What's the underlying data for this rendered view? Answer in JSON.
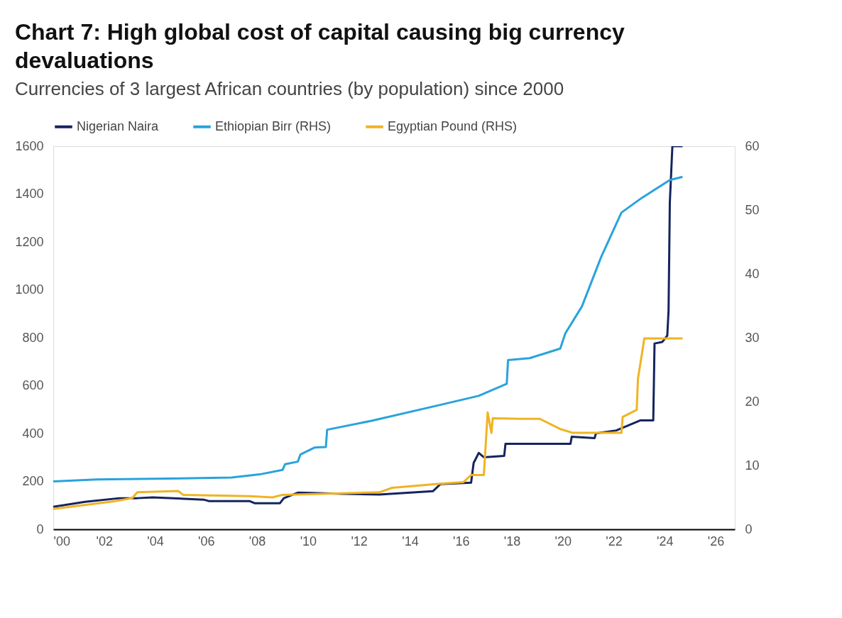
{
  "chart_data": {
    "type": "line",
    "title": "Chart 7: High global cost of capital causing big currency devaluations",
    "subtitle": "Currencies of 3 largest African countries (by population) since 2000",
    "series": [
      {
        "name": "Nigerian Naira",
        "color": "#14245e",
        "x": [
          2000,
          2001.25,
          2002.6,
          2003.3,
          2003.9,
          2005.9,
          2006.1,
          2007.7,
          2007.9,
          2008.9,
          2009.05,
          2009.6,
          2011.4,
          2012.8,
          2014.9,
          2015.2,
          2016.4,
          2016.5,
          2016.7,
          2016.9,
          2017.7,
          2017.75,
          2020.3,
          2020.35,
          2021.25,
          2021.3,
          2022.1,
          2023.05,
          2023.55,
          2023.6,
          2023.9,
          2024.1,
          2024.15,
          2024.2,
          2024.3,
          2024.7
        ],
        "values": [
          94,
          115,
          130,
          130,
          133,
          124,
          118,
          118,
          109,
          109,
          130,
          153,
          148,
          145,
          159,
          189,
          195,
          277,
          319,
          301,
          307,
          357,
          357,
          387,
          381,
          401,
          413,
          455,
          455,
          776,
          782,
          809,
          912,
          1364,
          1600,
          1600
        ]
      },
      {
        "name": "Ethiopian Birr (RHS)",
        "color": "#29a3dc",
        "axis": "y2",
        "x": [
          2000,
          2001.7,
          2005.4,
          2007.0,
          2008.1,
          2009.0,
          2009.1,
          2009.6,
          2009.7,
          2010.25,
          2010.7,
          2010.75,
          2012.5,
          2015.1,
          2016.7,
          2017.8,
          2017.85,
          2018.7,
          2019.9,
          2020.1,
          2020.75,
          2021.5,
          2022.3,
          2023.1,
          2024.2,
          2024.7
        ],
        "values": [
          7.5,
          7.8,
          8.0,
          8.1,
          8.6,
          9.3,
          10.2,
          10.6,
          11.7,
          12.8,
          12.9,
          15.6,
          17.0,
          19.4,
          20.9,
          22.8,
          26.5,
          26.8,
          28.3,
          30.7,
          34.9,
          42.6,
          49.6,
          51.9,
          54.7,
          55.2
        ]
      },
      {
        "name": "Egyptian Pound (RHS)",
        "color": "#f0b323",
        "axis": "y2",
        "x": [
          2000,
          2002.4,
          2003.1,
          2003.3,
          2004.9,
          2005.1,
          2007.7,
          2008.6,
          2009.0,
          2012.8,
          2013.3,
          2015.1,
          2016.1,
          2016.4,
          2016.9,
          2017.05,
          2017.2,
          2017.25,
          2018.3,
          2019.1,
          2019.9,
          2020.4,
          2022.3,
          2022.35,
          2022.9,
          2022.95,
          2023.2,
          2024.7
        ],
        "values": [
          3.2,
          4.4,
          4.9,
          5.8,
          6.0,
          5.4,
          5.2,
          5.0,
          5.4,
          5.8,
          6.5,
          7.1,
          7.4,
          8.5,
          8.5,
          18.3,
          15.1,
          17.4,
          17.3,
          17.3,
          15.7,
          15.1,
          15.1,
          17.6,
          18.7,
          23.6,
          29.9,
          29.9
        ]
      }
    ],
    "xlim": [
      2000,
      2026.75
    ],
    "xticks": [
      {
        "value": 2000,
        "label": "'00"
      },
      {
        "value": 2002,
        "label": "'02"
      },
      {
        "value": 2004,
        "label": "'04"
      },
      {
        "value": 2006,
        "label": "'06"
      },
      {
        "value": 2008,
        "label": "'08"
      },
      {
        "value": 2010,
        "label": "'10"
      },
      {
        "value": 2012,
        "label": "'12"
      },
      {
        "value": 2014,
        "label": "'14"
      },
      {
        "value": 2016,
        "label": "'16"
      },
      {
        "value": 2018,
        "label": "'18"
      },
      {
        "value": 2020,
        "label": "'20"
      },
      {
        "value": 2022,
        "label": "'22"
      },
      {
        "value": 2024,
        "label": "'24"
      },
      {
        "value": 2026,
        "label": "'26"
      }
    ],
    "ylim": [
      0,
      1600
    ],
    "yticks": [
      0,
      200,
      400,
      600,
      800,
      1000,
      1200,
      1400,
      1600
    ],
    "y2lim": [
      0,
      60
    ],
    "y2ticks": [
      0,
      10,
      20,
      30,
      40,
      50,
      60
    ],
    "legend": "top",
    "grid": false,
    "line_style": "solid"
  }
}
